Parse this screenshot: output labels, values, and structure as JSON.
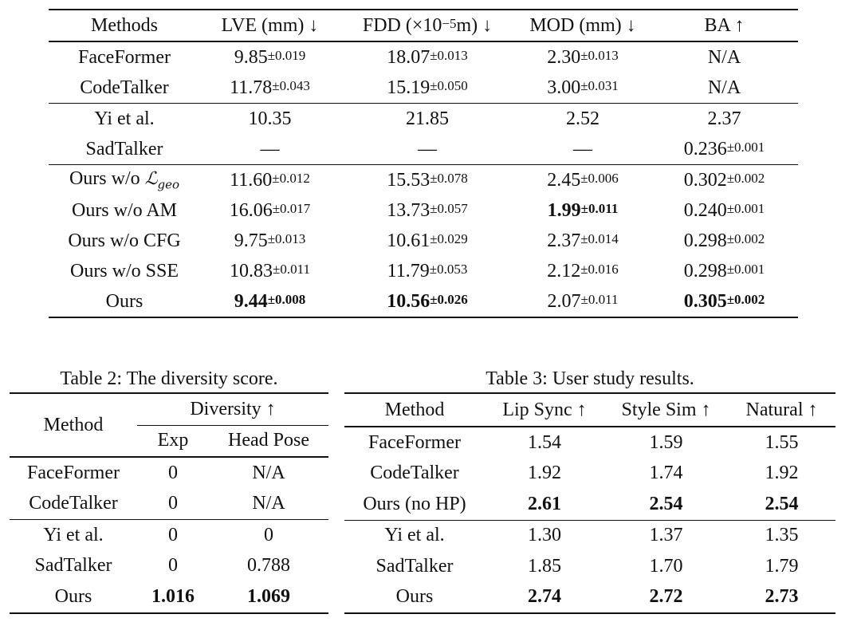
{
  "table1": {
    "headers": [
      "Methods",
      "LVE (mm) ↓",
      "FDD (×10",
      "−5",
      "m) ↓",
      "MOD (mm) ↓",
      "BA ↑"
    ],
    "groups": [
      [
        {
          "method": "FaceFormer",
          "lve": "9.85",
          "lve_sd": "±0.019",
          "fdd": "18.07",
          "fdd_sd": "±0.013",
          "mod": "2.30",
          "mod_sd": "±0.013",
          "ba": "N/A",
          "ba_sd": ""
        },
        {
          "method": "CodeTalker",
          "lve": "11.78",
          "lve_sd": "±0.043",
          "fdd": "15.19",
          "fdd_sd": "±0.050",
          "mod": "3.00",
          "mod_sd": "±0.031",
          "ba": "N/A",
          "ba_sd": ""
        }
      ],
      [
        {
          "method": "Yi et al.",
          "lve": "10.35",
          "lve_sd": "",
          "fdd": "21.85",
          "fdd_sd": "",
          "mod": "2.52",
          "mod_sd": "",
          "ba": "2.37",
          "ba_sd": ""
        },
        {
          "method": "SadTalker",
          "lve": "—",
          "lve_sd": "",
          "fdd": "—",
          "fdd_sd": "",
          "mod": "—",
          "mod_sd": "",
          "ba": "0.236",
          "ba_sd": "±0.001"
        }
      ],
      [
        {
          "method": "Ours w/o ",
          "method_sym": "ℒ",
          "method_sub": "geo",
          "lve": "11.60",
          "lve_sd": "±0.012",
          "fdd": "15.53",
          "fdd_sd": "±0.078",
          "mod": "2.45",
          "mod_sd": "±0.006",
          "ba": "0.302",
          "ba_sd": "±0.002"
        },
        {
          "method": "Ours w/o AM",
          "lve": "16.06",
          "lve_sd": "±0.017",
          "fdd": "13.73",
          "fdd_sd": "±0.057",
          "mod": "1.99",
          "mod_sd": "±0.011",
          "ba": "0.240",
          "ba_sd": "±0.001"
        },
        {
          "method": "Ours w/o CFG",
          "lve": "9.75",
          "lve_sd": "±0.013",
          "fdd": "10.61",
          "fdd_sd": "±0.029",
          "mod": "2.37",
          "mod_sd": "±0.014",
          "ba": "0.298",
          "ba_sd": "±0.002"
        },
        {
          "method": "Ours w/o SSE",
          "lve": "10.83",
          "lve_sd": "±0.011",
          "fdd": "11.79",
          "fdd_sd": "±0.053",
          "mod": "2.12",
          "mod_sd": "±0.016",
          "ba": "0.298",
          "ba_sd": "±0.001"
        },
        {
          "method": "Ours",
          "lve": "9.44",
          "lve_sd": "±0.008",
          "fdd": "10.56",
          "fdd_sd": "±0.026",
          "mod": "2.07",
          "mod_sd": "±0.011",
          "ba": "0.305",
          "ba_sd": "±0.002"
        }
      ]
    ]
  },
  "table2": {
    "caption": "Table 2: The diversity score.",
    "header_method": "Method",
    "header_group": "Diversity ↑",
    "sub_headers": [
      "Exp",
      "Head Pose"
    ],
    "rows": [
      {
        "method": "FaceFormer",
        "exp": "0",
        "pose": "N/A"
      },
      {
        "method": "CodeTalker",
        "exp": "0",
        "pose": "N/A"
      },
      {
        "method": "Yi et al.",
        "exp": "0",
        "pose": "0"
      },
      {
        "method": "SadTalker",
        "exp": "0",
        "pose": "0.788"
      },
      {
        "method": "Ours",
        "exp": "1.016",
        "pose": "1.069"
      }
    ]
  },
  "table3": {
    "caption": "Table 3: User study results.",
    "headers": [
      "Method",
      "Lip Sync ↑",
      "Style Sim ↑",
      "Natural ↑"
    ],
    "rows": [
      {
        "method": "FaceFormer",
        "lip": "1.54",
        "style": "1.59",
        "natural": "1.55"
      },
      {
        "method": "CodeTalker",
        "lip": "1.92",
        "style": "1.74",
        "natural": "1.92"
      },
      {
        "method": "Ours (no HP)",
        "lip": "2.61",
        "style": "2.54",
        "natural": "2.54"
      },
      {
        "method": "Yi et al.",
        "lip": "1.30",
        "style": "1.37",
        "natural": "1.35"
      },
      {
        "method": "SadTalker",
        "lip": "1.85",
        "style": "1.70",
        "natural": "1.79"
      },
      {
        "method": "Ours",
        "lip": "2.74",
        "style": "2.72",
        "natural": "2.73"
      }
    ]
  }
}
